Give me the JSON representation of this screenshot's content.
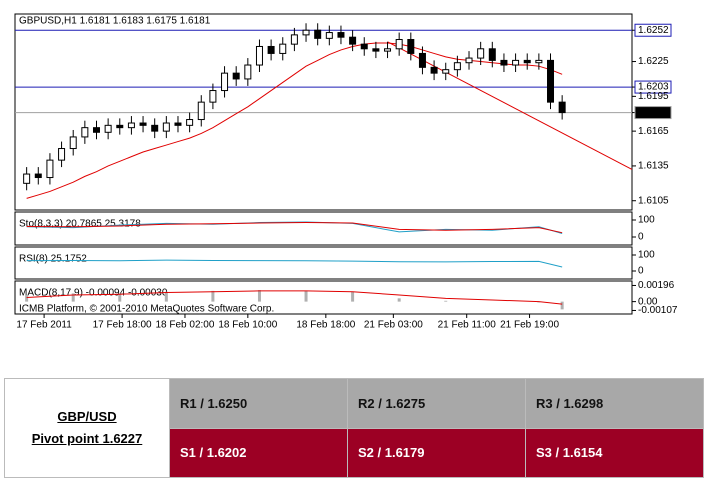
{
  "chart_data": {
    "type": "candlestick",
    "title": "GBPUSD,H1  1.6181 1.6183 1.6175 1.6181",
    "footer": "ICMB Platform, © 2001-2010 MetaQuotes Software Corp.",
    "open": [
      1.612,
      1.6128,
      1.6125,
      1.614,
      1.615,
      1.616,
      1.6168,
      1.6164,
      1.617,
      1.6168,
      1.6172,
      1.617,
      1.6165,
      1.6172,
      1.617,
      1.6175,
      1.619,
      1.62,
      1.6215,
      1.621,
      1.6222,
      1.6238,
      1.6232,
      1.624,
      1.6248,
      1.6252,
      1.6245,
      1.625,
      1.6246,
      1.624,
      1.6236,
      1.6234,
      1.6236,
      1.6244,
      1.6232,
      1.622,
      1.6215,
      1.6218,
      1.6224,
      1.6228,
      1.6236,
      1.6226,
      1.6222,
      1.6226,
      1.6224,
      1.6226,
      1.619
    ],
    "high": [
      1.6134,
      1.6134,
      1.6146,
      1.6156,
      1.6166,
      1.6174,
      1.6174,
      1.6176,
      1.6176,
      1.6178,
      1.6178,
      1.6176,
      1.6178,
      1.6178,
      1.6181,
      1.6196,
      1.6206,
      1.6221,
      1.6221,
      1.6228,
      1.6244,
      1.6244,
      1.6246,
      1.6254,
      1.6258,
      1.6258,
      1.6256,
      1.6256,
      1.6252,
      1.6246,
      1.6242,
      1.6242,
      1.625,
      1.625,
      1.6238,
      1.6226,
      1.6224,
      1.623,
      1.6234,
      1.6242,
      1.6242,
      1.6232,
      1.6232,
      1.6232,
      1.6232,
      1.6232,
      1.6196
    ],
    "low": [
      1.6114,
      1.6119,
      1.6119,
      1.6134,
      1.6144,
      1.6154,
      1.6158,
      1.6158,
      1.6162,
      1.6162,
      1.6164,
      1.6159,
      1.6159,
      1.6164,
      1.6164,
      1.6169,
      1.6184,
      1.6194,
      1.6204,
      1.6204,
      1.6216,
      1.6226,
      1.6226,
      1.6234,
      1.6242,
      1.6239,
      1.6239,
      1.624,
      1.6234,
      1.623,
      1.6228,
      1.6228,
      1.623,
      1.6226,
      1.6214,
      1.6209,
      1.6209,
      1.6212,
      1.6218,
      1.6222,
      1.622,
      1.6216,
      1.6216,
      1.6218,
      1.6218,
      1.6184,
      1.6175
    ],
    "close": [
      1.6128,
      1.6125,
      1.614,
      1.615,
      1.616,
      1.6168,
      1.6164,
      1.617,
      1.6168,
      1.6172,
      1.617,
      1.6165,
      1.6172,
      1.617,
      1.6175,
      1.619,
      1.62,
      1.6215,
      1.621,
      1.6222,
      1.6238,
      1.6232,
      1.624,
      1.6248,
      1.6252,
      1.6245,
      1.625,
      1.6246,
      1.624,
      1.6236,
      1.6234,
      1.6236,
      1.6244,
      1.6232,
      1.622,
      1.6215,
      1.6218,
      1.6224,
      1.6228,
      1.6236,
      1.6226,
      1.6222,
      1.6226,
      1.6224,
      1.6226,
      1.619,
      1.6181
    ],
    "ma": [
      1.6107,
      1.611,
      1.6113,
      1.6117,
      1.6121,
      1.6126,
      1.613,
      1.6135,
      1.6139,
      1.6143,
      1.6147,
      1.615,
      1.6153,
      1.6156,
      1.6159,
      1.6163,
      1.6168,
      1.6174,
      1.618,
      1.6186,
      1.6193,
      1.62,
      1.6207,
      1.6214,
      1.6221,
      1.6226,
      1.6231,
      1.6235,
      1.6238,
      1.624,
      1.6241,
      1.6241,
      1.624,
      1.6238,
      1.6235,
      1.6232,
      1.6229,
      1.6227,
      1.6226,
      1.6225,
      1.6224,
      1.6223,
      1.6222,
      1.6222,
      1.6221,
      1.6218,
      1.6214
    ],
    "ma_color": "#e00000",
    "trendline": {
      "x": [
        31,
        52
      ],
      "y": [
        1.6242,
        1.6132
      ]
    },
    "ylim": [
      1.6097,
      1.6266
    ],
    "yticks": [
      1.6252,
      1.6225,
      1.6203,
      1.6195,
      1.6181,
      1.6165,
      1.6135,
      1.6105
    ],
    "hlines": [
      {
        "value": 1.6252,
        "color": "#1c1cb4"
      },
      {
        "value": 1.6203,
        "color": "#1c1cb4"
      },
      {
        "value": 1.6181,
        "color": "#a0a0a0"
      }
    ],
    "xlim": [
      -1,
      52
    ],
    "xticks": [
      {
        "value": 1.5,
        "label": "17 Feb 2011"
      },
      {
        "value": 8.2,
        "label": "17 Feb 18:00"
      },
      {
        "value": 13.6,
        "label": "18 Feb 02:00"
      },
      {
        "value": 19,
        "label": "18 Feb 10:00"
      },
      {
        "value": 25.7,
        "label": "18 Feb 18:00"
      },
      {
        "value": 31.5,
        "label": "21 Feb 03:00"
      },
      {
        "value": 37.8,
        "label": "21 Feb 11:00"
      },
      {
        "value": 43.2,
        "label": "21 Feb 19:00"
      }
    ],
    "indicators": [
      {
        "label": "Sto(8,3,3) 20.7865 25.3178",
        "ylim": [
          -47,
          147
        ],
        "yticks": [
          100,
          0
        ],
        "x": [
          0,
          4,
          8,
          12,
          16,
          20,
          24,
          28,
          32,
          36,
          40,
          44,
          46
        ],
        "series": [
          {
            "color": "#20a0c8",
            "values": [
              60,
              55,
              70,
              80,
              75,
              85,
              88,
              80,
              30,
              45,
              40,
              60,
              20.79
            ]
          },
          {
            "color": "#e00000",
            "values": [
              62,
              60,
              65,
              75,
              78,
              82,
              85,
              82,
              45,
              40,
              45,
              55,
              25.32
            ]
          }
        ]
      },
      {
        "label": "RSI(8) 25.1752",
        "ylim": [
          -50,
          150
        ],
        "yticks": [
          100,
          0
        ],
        "x": [
          0,
          4,
          8,
          12,
          16,
          20,
          24,
          28,
          32,
          36,
          40,
          44,
          46
        ],
        "series": [
          {
            "color": "#20a0c8",
            "values": [
              65,
              66,
              64,
              68,
              66,
              65,
              64,
              62,
              58,
              57,
              59,
              60,
              25.18
            ]
          }
        ]
      },
      {
        "label": "MACD(8,17,9) -0.00094 -0.00030",
        "ylim": [
          -0.0015,
          0.0025
        ],
        "yticks": [
          0.00196,
          {
            "value": 0,
            "label": "0.00"
          },
          -0.00107
        ],
        "x": [
          0,
          4,
          8,
          12,
          16,
          20,
          24,
          28,
          32,
          36,
          40,
          44,
          46
        ],
        "histogram": {
          "color": "#b0b0b0",
          "values": [
            0.0008,
            0.001,
            0.001,
            0.0012,
            0.0013,
            0.0014,
            0.0013,
            0.0012,
            0.0004,
            0.0001,
            0.0,
            -0.0001,
            -0.00094
          ]
        },
        "series": [
          {
            "color": "#e00000",
            "values": [
              0.0005,
              0.0008,
              0.0009,
              0.0011,
              0.0012,
              0.0013,
              0.0013,
              0.0012,
              0.0008,
              0.0004,
              0.0002,
              0.0,
              -0.0003
            ]
          }
        ]
      }
    ]
  },
  "table": {
    "title": "GBP/USD",
    "subtitle": "Pivot point 1.6227",
    "rows": [
      [
        "R1 / 1.6250",
        "R2 / 1.6275",
        "R3 / 1.6298"
      ],
      [
        "S1 / 1.6202",
        "S2 / 1.6179",
        "S3 / 1.6154"
      ]
    ]
  }
}
